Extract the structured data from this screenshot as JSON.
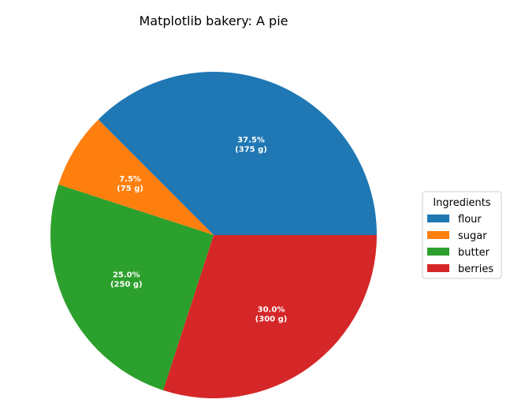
{
  "chart_data": {
    "type": "pie",
    "title": "Matplotlib bakery: A pie",
    "unit": "g",
    "categories": [
      "flour",
      "sugar",
      "butter",
      "berries"
    ],
    "values": [
      375,
      75,
      250,
      300
    ],
    "percent_labels": [
      "37.5%",
      "7.5%",
      "25.0%",
      "30.0%"
    ],
    "amount_labels": [
      "(375 g)",
      "(75 g)",
      "(250 g)",
      "(300 g)"
    ],
    "colors": [
      "#1f77b4",
      "#ff7f0e",
      "#2ca02c",
      "#d62728"
    ],
    "start_angle_deg": 0,
    "direction": "counterclockwise",
    "legend": {
      "title": "Ingredients",
      "placement": "center-right",
      "entries": [
        "flour",
        "sugar",
        "butter",
        "berries"
      ]
    }
  }
}
